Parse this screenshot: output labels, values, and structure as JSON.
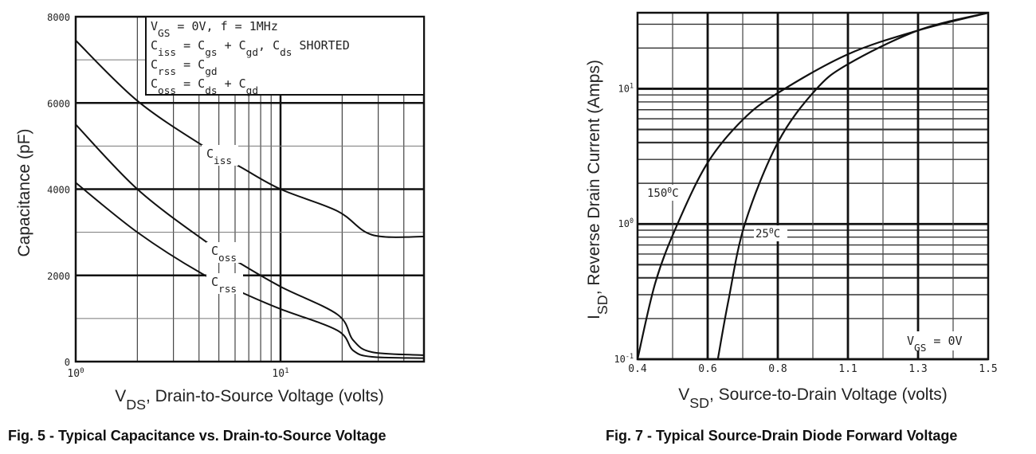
{
  "chart_data": [
    {
      "type": "line",
      "title": "Fig. 5 - Typical Capacitance vs. Drain-to-Source Voltage",
      "xlabel": {
        "main": "V",
        "sub": "DS",
        "rest": ", Drain-to-Source Voltage (volts)"
      },
      "ylabel": "Capacitance (pF)",
      "xscale": "log",
      "xlim": [
        1,
        50
      ],
      "ylim": [
        0,
        8000
      ],
      "grid": true,
      "yticks": [
        "0",
        "2000",
        "4000",
        "6000",
        "8000"
      ],
      "xticks": [
        {
          "base": "10",
          "exp": "0"
        },
        {
          "base": "10",
          "exp": "1"
        }
      ],
      "legend_box": [
        [
          {
            "t": "V"
          },
          {
            "t": "GS",
            "sub": true
          },
          {
            "t": " = 0V,  f = 1MHz"
          }
        ],
        [
          {
            "t": "C"
          },
          {
            "t": "iss",
            "sub": true
          },
          {
            "t": " = C"
          },
          {
            "t": "gs",
            "sub": true
          },
          {
            "t": " + C"
          },
          {
            "t": "gd",
            "sub": true
          },
          {
            "t": ",  C"
          },
          {
            "t": "ds",
            "sub": true
          },
          {
            "t": " SHORTED"
          }
        ],
        [
          {
            "t": "C"
          },
          {
            "t": "rss",
            "sub": true
          },
          {
            "t": " = C"
          },
          {
            "t": "gd",
            "sub": true
          }
        ],
        [
          {
            "t": "C"
          },
          {
            "t": "oss",
            "sub": true
          },
          {
            "t": " = C"
          },
          {
            "t": "ds",
            "sub": true
          },
          {
            "t": " + C"
          },
          {
            "t": "gd",
            "sub": true
          }
        ]
      ],
      "series": [
        {
          "name": "Ciss",
          "label": {
            "main": "C",
            "sub": "iss"
          },
          "x": [
            1,
            2,
            4.3,
            6.4,
            10,
            19,
            28,
            50
          ],
          "y": [
            7450,
            6050,
            4970,
            4510,
            4000,
            3490,
            2940,
            2900
          ]
        },
        {
          "name": "Coss",
          "label": {
            "main": "C",
            "sub": "oss"
          },
          "x": [
            1,
            2,
            4.3,
            6.2,
            10,
            19,
            22.6,
            28,
            50
          ],
          "y": [
            5500,
            4000,
            2790,
            2310,
            1740,
            1090,
            500,
            220,
            150
          ]
        },
        {
          "name": "Crss",
          "label": {
            "main": "C",
            "sub": "rss"
          },
          "x": [
            1,
            2,
            4.1,
            6.7,
            10,
            19,
            22.6,
            28,
            50
          ],
          "y": [
            4150,
            3000,
            2050,
            1570,
            1220,
            720,
            260,
            110,
            80
          ]
        }
      ]
    },
    {
      "type": "line",
      "title": "Fig. 7 - Typical Source-Drain Diode Forward Voltage",
      "xlabel": {
        "main": "V",
        "sub": "SD",
        "rest": ", Source-to-Drain Voltage (volts)"
      },
      "ylabel": {
        "main": "I",
        "sub": "SD",
        "rest": ", Reverse Drain Current (Amps)"
      },
      "yscale": "log",
      "xlim": [
        0.4,
        1.5
      ],
      "ylim": [
        0.1,
        36.5
      ],
      "grid": true,
      "xticks": [
        "0.4",
        "0.6",
        "0.8",
        "1.1",
        "1.3",
        "1.5"
      ],
      "yticks": [
        {
          "base": "10",
          "exp": "-1"
        },
        {
          "base": "10",
          "exp": "0"
        },
        {
          "base": "10",
          "exp": "1"
        }
      ],
      "annotation": [
        {
          "t": "V"
        },
        {
          "t": "GS",
          "sub": true
        },
        {
          "t": " = 0V"
        }
      ],
      "series": [
        {
          "name": "150°C",
          "label": {
            "main": "150",
            "sup": "0",
            "rest": "C"
          },
          "x": [
            0.4,
            0.451,
            0.514,
            0.6,
            0.7,
            0.8,
            1.1,
            1.3,
            1.5
          ],
          "y": [
            0.1,
            0.37,
            1.0,
            2.84,
            5.9,
            9.3,
            18,
            27,
            36.5
          ]
        },
        {
          "name": "25°C",
          "label": {
            "main": "25",
            "sup": "0",
            "rest": "C"
          },
          "x": [
            0.629,
            0.659,
            0.706,
            0.8,
            0.959,
            1.1,
            1.3,
            1.5
          ],
          "y": [
            0.1,
            0.27,
            1.0,
            4.0,
            9.7,
            15.2,
            27,
            36.5
          ]
        }
      ]
    }
  ]
}
